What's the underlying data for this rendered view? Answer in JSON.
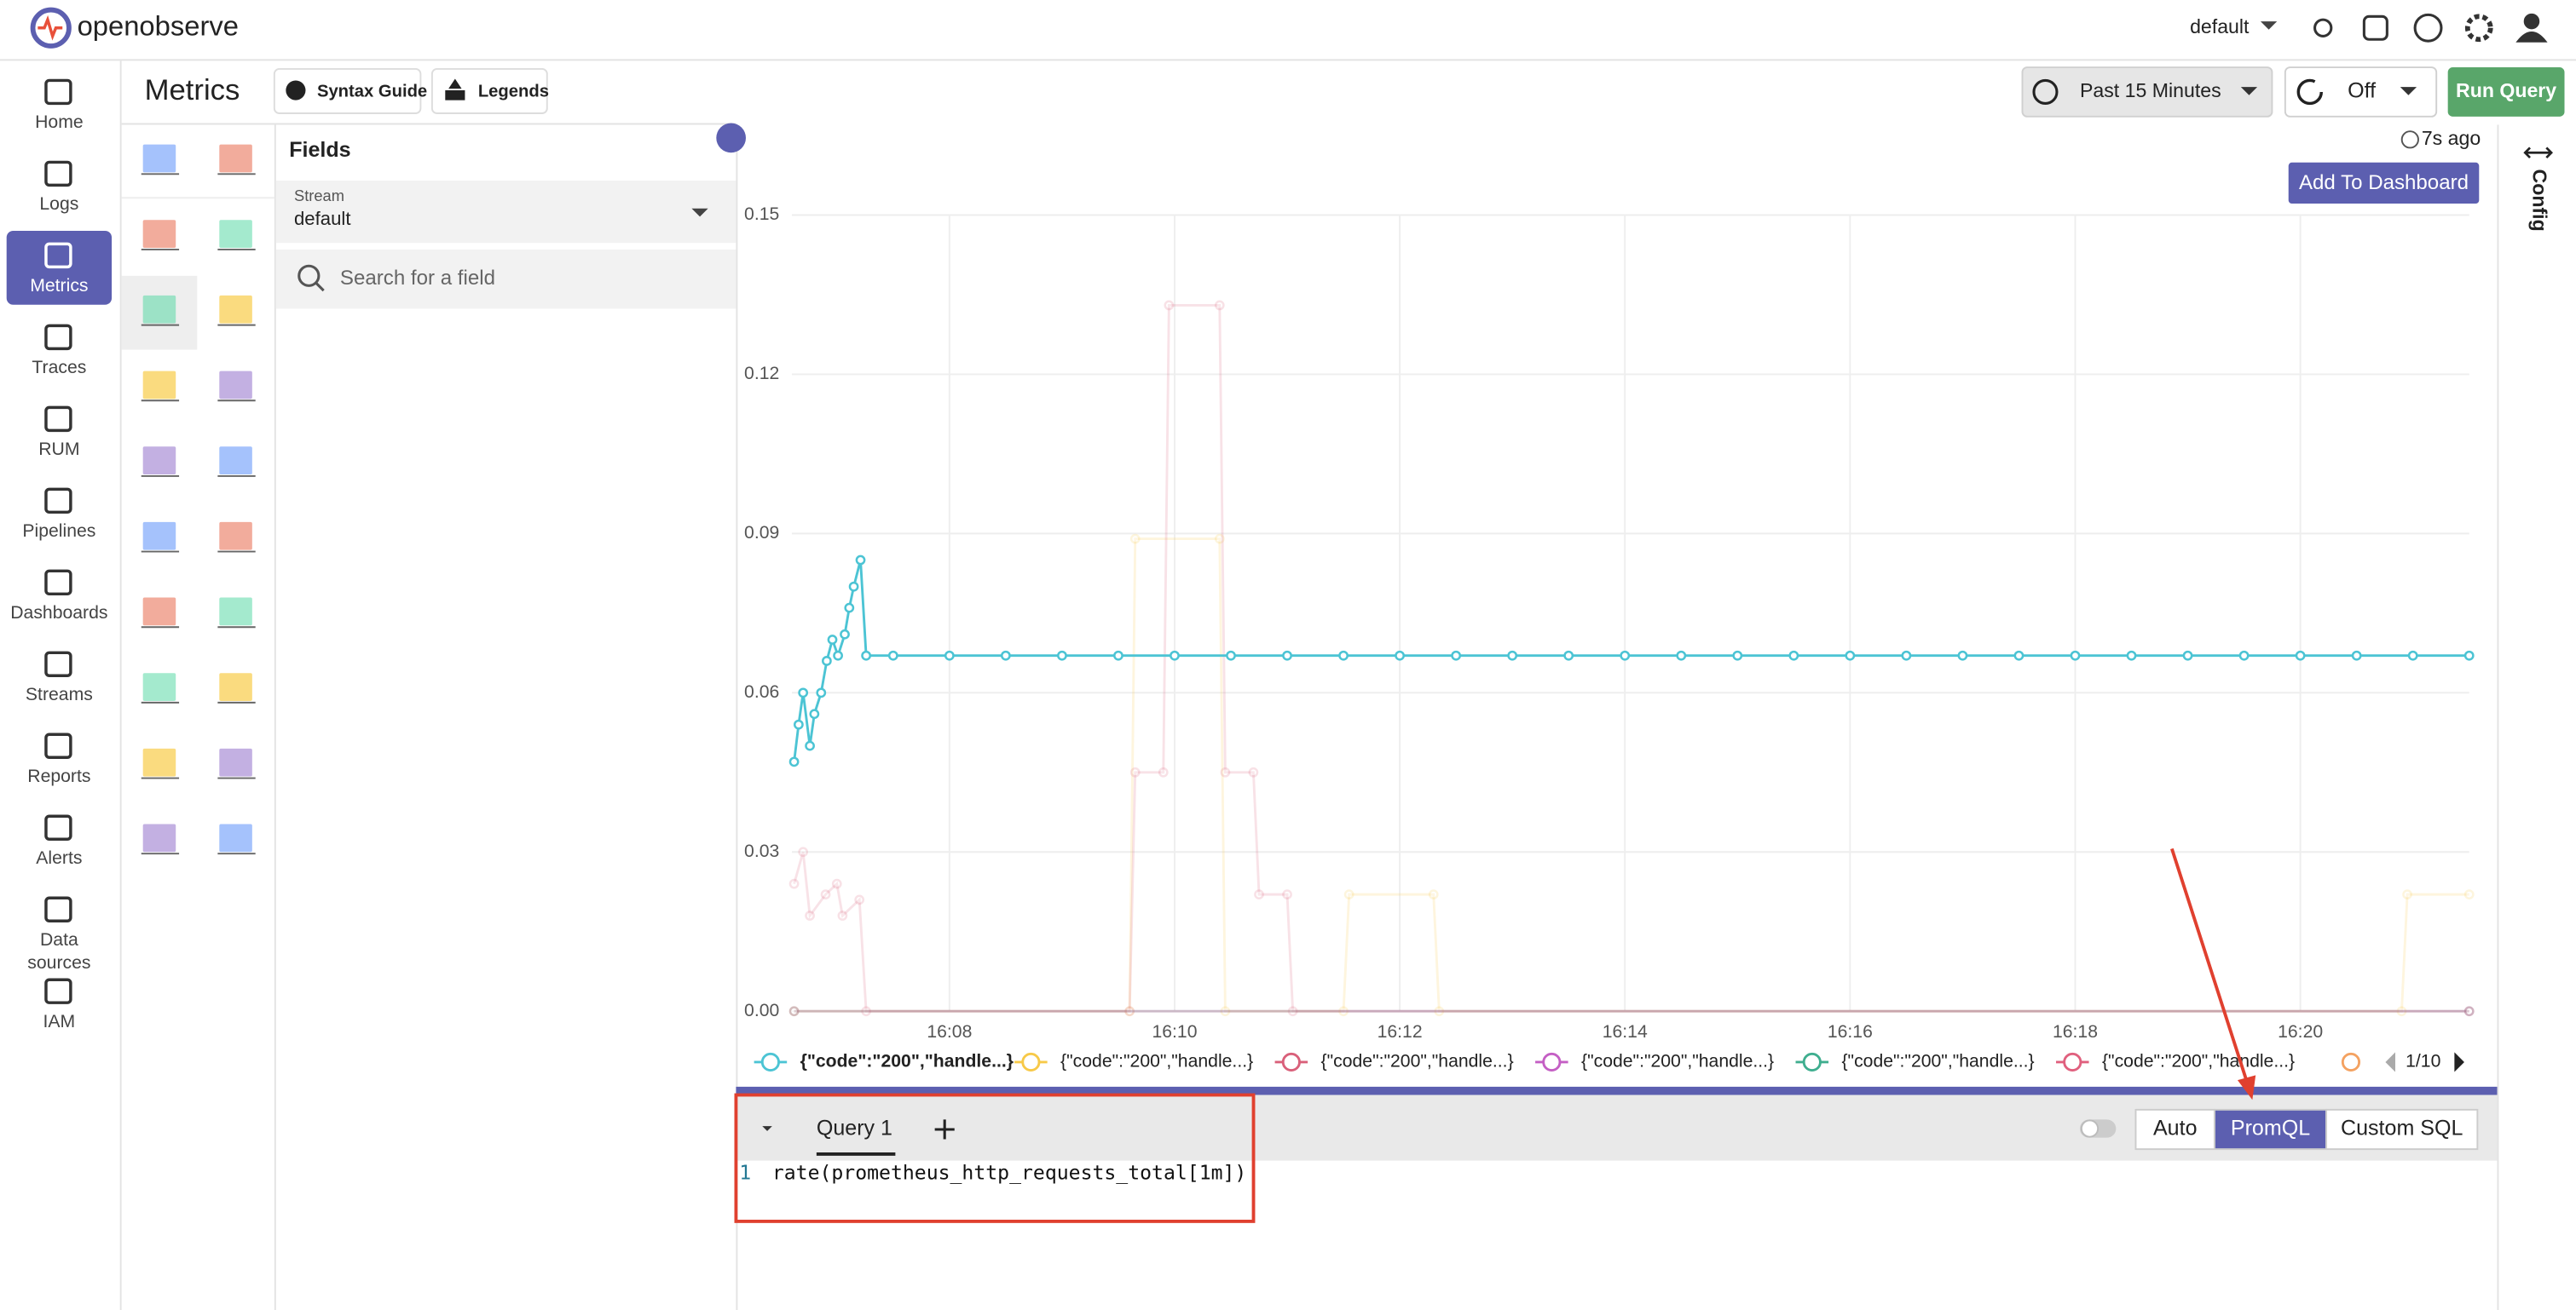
{
  "header": {
    "logo": "openobserve",
    "org": "default"
  },
  "nav": [
    {
      "label": [
        "Home"
      ]
    },
    {
      "label": [
        "Logs"
      ]
    },
    {
      "label": [
        "Metrics"
      ],
      "active": true
    },
    {
      "label": [
        "Traces"
      ]
    },
    {
      "label": [
        "RUM"
      ]
    },
    {
      "label": [
        "Pipelines"
      ]
    },
    {
      "label": [
        "Dashboards"
      ]
    },
    {
      "label": [
        "Streams"
      ]
    },
    {
      "label": [
        "Reports"
      ]
    },
    {
      "label": [
        "Alerts"
      ]
    },
    {
      "label": [
        "Data",
        "sources"
      ]
    },
    {
      "label": [
        "IAM"
      ]
    }
  ],
  "toolbar": {
    "title": "Metrics",
    "syntax_guide": "Syntax Guide",
    "legends": "Legends",
    "time_range": "Past 15 Minutes",
    "refresh": "Off",
    "run_query": "Run Query"
  },
  "fields": {
    "title": "Fields",
    "stream_label": "Stream",
    "stream": "default",
    "search_placeholder": "Search for a field"
  },
  "chart_panel": {
    "last_refreshed": "7s ago",
    "add_to_dashboard": "Add To Dashboard",
    "config": "Config",
    "legend_page": "1/10"
  },
  "chart_data": {
    "type": "line",
    "grid": true,
    "legend": "bottom",
    "xlim": [
      966.6,
      981.5
    ],
    "xticks": [
      {
        "value": 968,
        "label": "16:08"
      },
      {
        "value": 970,
        "label": "16:10"
      },
      {
        "value": 972,
        "label": "16:12"
      },
      {
        "value": 974,
        "label": "16:14"
      },
      {
        "value": 976,
        "label": "16:16"
      },
      {
        "value": 978,
        "label": "16:18"
      },
      {
        "value": 980,
        "label": "16:20"
      }
    ],
    "ylim": [
      0,
      0.15
    ],
    "yticks": [
      {
        "value": 0,
        "label": "0.00"
      },
      {
        "value": 0.03,
        "label": "0.03"
      },
      {
        "value": 0.06,
        "label": "0.06"
      },
      {
        "value": 0.09,
        "label": "0.09"
      },
      {
        "value": 0.12,
        "label": "0.12"
      },
      {
        "value": 0.15,
        "label": "0.15"
      }
    ],
    "series": [
      {
        "name": "{\"code\":\"200\",\"handle...}",
        "color": "#4cc4d4",
        "faded": false,
        "x": [
          966.62,
          966.66,
          966.7,
          966.76,
          966.8,
          966.86,
          966.91,
          966.96,
          967.01,
          967.07,
          967.11,
          967.15,
          967.21,
          967.26,
          967.5,
          968,
          968.5,
          969,
          969.5,
          970,
          970.5,
          971,
          971.5,
          972,
          972.5,
          973,
          973.5,
          974,
          974.5,
          975,
          975.5,
          976,
          976.5,
          977,
          977.5,
          978,
          978.5,
          979,
          979.5,
          980,
          980.5,
          981,
          981.5
        ],
        "values": [
          0.047,
          0.054,
          0.06,
          0.05,
          0.056,
          0.06,
          0.066,
          0.07,
          0.067,
          0.071,
          0.076,
          0.08,
          0.085,
          0.067,
          0.067,
          0.067,
          0.067,
          0.067,
          0.067,
          0.067,
          0.067,
          0.067,
          0.067,
          0.067,
          0.067,
          0.067,
          0.067,
          0.067,
          0.067,
          0.067,
          0.067,
          0.067,
          0.067,
          0.067,
          0.067,
          0.067,
          0.067,
          0.067,
          0.067,
          0.067,
          0.067,
          0.067,
          0.067
        ]
      },
      {
        "name": "{\"code\":\"200\",\"handle...}",
        "color": "#f7c948",
        "faded": true,
        "x": [
          966.62,
          969.6,
          969.65,
          970.4,
          970.45,
          971.5,
          971.55,
          972.3,
          972.35,
          980.9,
          980.95,
          981.5
        ],
        "values": [
          0,
          0,
          0.089,
          0.089,
          0,
          0,
          0.022,
          0.022,
          0,
          0,
          0.022,
          0.022
        ]
      },
      {
        "name": "{\"code\":\"200\",\"handle...}",
        "color": "#d9607a",
        "faded": true,
        "x": [
          966.62,
          966.7,
          966.76,
          966.9,
          967,
          967.05,
          967.2,
          967.26,
          969.6,
          969.65,
          969.9,
          969.95,
          970.4,
          970.45,
          970.7,
          970.75,
          971,
          971.05,
          981.5
        ],
        "values": [
          0.024,
          0.03,
          0.018,
          0.022,
          0.024,
          0.018,
          0.021,
          0,
          0,
          0.045,
          0.045,
          0.133,
          0.133,
          0.045,
          0.045,
          0.022,
          0.022,
          0,
          0
        ]
      },
      {
        "name": "{\"code\":\"200\",\"handle...}",
        "color": "#c45fc4",
        "faded": true,
        "x": [
          966.62,
          981.5
        ],
        "values": [
          0,
          0
        ]
      },
      {
        "name": "{\"code\":\"200\",\"handle...}",
        "color": "#3fae8f",
        "faded": true,
        "x": [
          966.62,
          981.5
        ],
        "values": [
          0,
          0
        ]
      },
      {
        "name": "{\"code\":\"200\",\"handle...}",
        "color": "#e0607e",
        "faded": true,
        "x": [
          966.62,
          981.5
        ],
        "values": [
          0,
          0
        ]
      }
    ]
  },
  "query": {
    "tab": "Query 1",
    "modes": [
      "Auto",
      "PromQL",
      "Custom SQL"
    ],
    "active_mode": 1,
    "line_number": "1",
    "code": "rate(prometheus_http_requests_total[1m])"
  }
}
